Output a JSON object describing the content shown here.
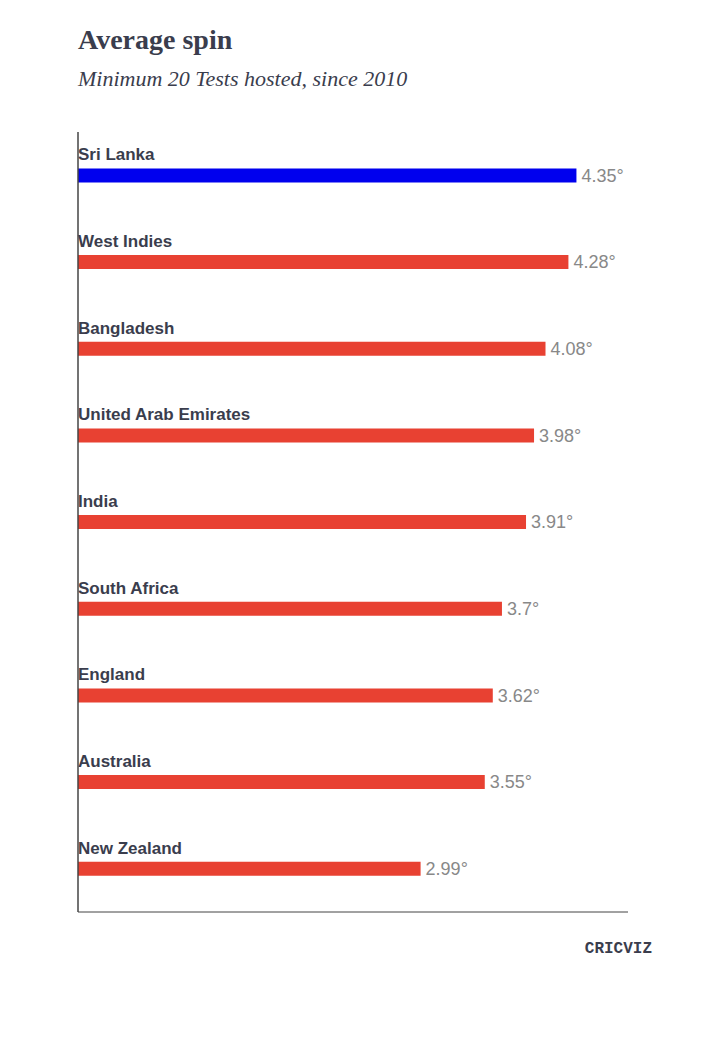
{
  "chart_data": {
    "type": "bar",
    "orientation": "horizontal",
    "title": "Average spin",
    "subtitle": "Minimum 20 Tests hosted, since 2010",
    "categories": [
      "Sri Lanka",
      "West Indies",
      "Bangladesh",
      "United Arab Emirates",
      "India",
      "South Africa",
      "England",
      "Australia",
      "New Zealand"
    ],
    "values": [
      4.35,
      4.28,
      4.08,
      3.98,
      3.91,
      3.7,
      3.62,
      3.55,
      2.99
    ],
    "value_labels": [
      "4.35°",
      "4.28°",
      "4.08°",
      "3.98°",
      "3.91°",
      "3.7°",
      "3.62°",
      "3.55°",
      "2.99°"
    ],
    "data_labels": true,
    "colors": [
      "#0000ee",
      "#e84132",
      "#e84132",
      "#e84132",
      "#e84132",
      "#e84132",
      "#e84132",
      "#e84132",
      "#e84132"
    ],
    "xlim": [
      0,
      4.8
    ],
    "tick_labels": false,
    "grid": false,
    "annotations": [
      "CRICVIZ"
    ]
  }
}
